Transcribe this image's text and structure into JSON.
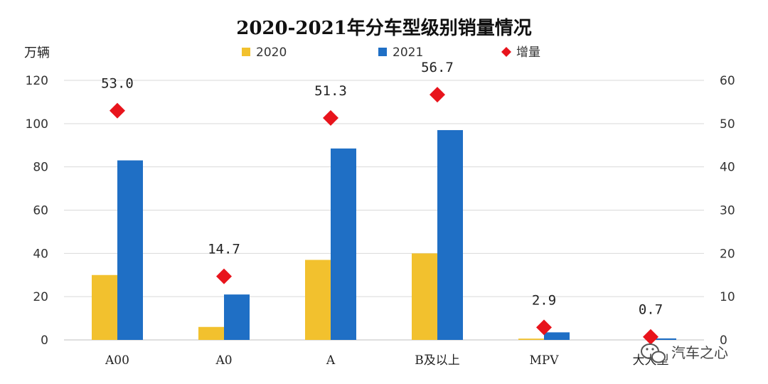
{
  "chart_data": {
    "type": "bar",
    "title": "2020-2021年分车型级别销量情况",
    "ylabel": "万辆",
    "categories": [
      "A00",
      "A0",
      "A",
      "B及以上",
      "MPV",
      "大大型"
    ],
    "ylim": [
      0,
      120
    ],
    "yticks": [
      0,
      20,
      40,
      60,
      80,
      100,
      120
    ],
    "y2lim": [
      0,
      60
    ],
    "y2ticks": [
      0,
      10,
      20,
      30,
      40,
      50,
      60
    ],
    "grid": true,
    "legend_position": "top",
    "series": [
      {
        "name": "2020",
        "type": "bar",
        "axis": "left",
        "color": "#F2C12E",
        "values": [
          30,
          6,
          37,
          40,
          0.6,
          0
        ]
      },
      {
        "name": "2021",
        "type": "bar",
        "axis": "left",
        "color": "#1F6FC5",
        "values": [
          83,
          21,
          88.5,
          97,
          3.5,
          0.7
        ]
      },
      {
        "name": "增量",
        "type": "scatter",
        "marker": "diamond",
        "axis": "right",
        "color": "#E8141C",
        "values": [
          53.0,
          14.7,
          51.3,
          56.7,
          2.9,
          0.7
        ],
        "labels": [
          "53.0",
          "14.7",
          "51.3",
          "56.7",
          "2.9",
          "0.7"
        ]
      }
    ]
  },
  "watermark": {
    "text": "汽车之心",
    "icon": "wechat-icon"
  }
}
